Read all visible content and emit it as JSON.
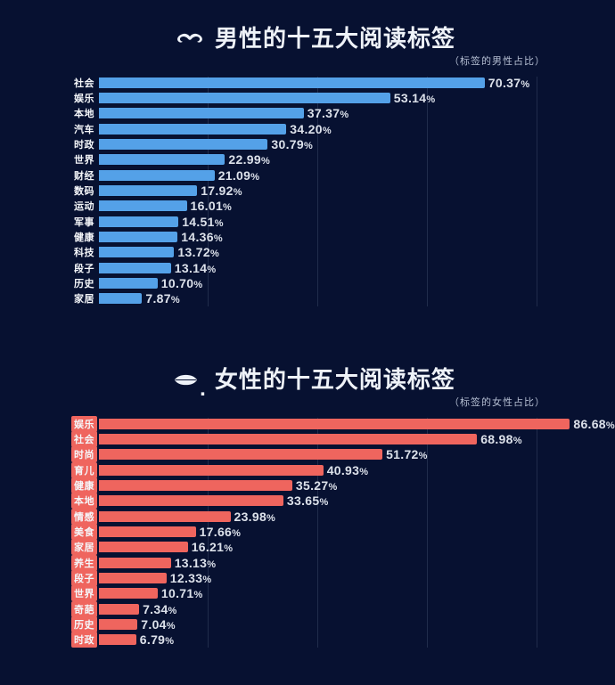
{
  "page": {
    "background": "#071131"
  },
  "chart_data": [
    {
      "type": "bar",
      "orientation": "horizontal",
      "title": "男性的十五大阅读标签",
      "subtitle": "（标签的男性占比）",
      "icon": "mustache-icon",
      "icon_suffix": "",
      "bar_color": "#54a1e8",
      "label_bg": "",
      "value_suffix": "%",
      "xlim": [
        0,
        100
      ],
      "grid_interval_percent": 20,
      "legend": "none",
      "categories": [
        "社会",
        "娱乐",
        "本地",
        "汽车",
        "时政",
        "世界",
        "财经",
        "数码",
        "运动",
        "军事",
        "健康",
        "科技",
        "段子",
        "历史",
        "家居"
      ],
      "values": [
        70.37,
        53.14,
        37.37,
        34.2,
        30.79,
        22.99,
        21.09,
        17.92,
        16.01,
        14.51,
        14.36,
        13.72,
        13.14,
        10.7,
        7.87
      ]
    },
    {
      "type": "bar",
      "orientation": "horizontal",
      "title": "女性的十五大阅读标签",
      "subtitle": "（标签的女性占比）",
      "icon": "lips-icon",
      "icon_suffix": ".",
      "bar_color": "#ef655e",
      "label_bg": "#ef655e",
      "value_suffix": "%",
      "xlim": [
        0,
        100
      ],
      "grid_interval_percent": 20,
      "legend": "none",
      "categories": [
        "娱乐",
        "社会",
        "时尚",
        "育儿",
        "健康",
        "本地",
        "情感",
        "美食",
        "家居",
        "养生",
        "段子",
        "世界",
        "奇葩",
        "历史",
        "时政"
      ],
      "values": [
        86.68,
        68.98,
        51.72,
        40.93,
        35.27,
        33.65,
        23.98,
        17.66,
        16.21,
        13.13,
        12.33,
        10.71,
        7.34,
        7.04,
        6.79
      ]
    }
  ]
}
